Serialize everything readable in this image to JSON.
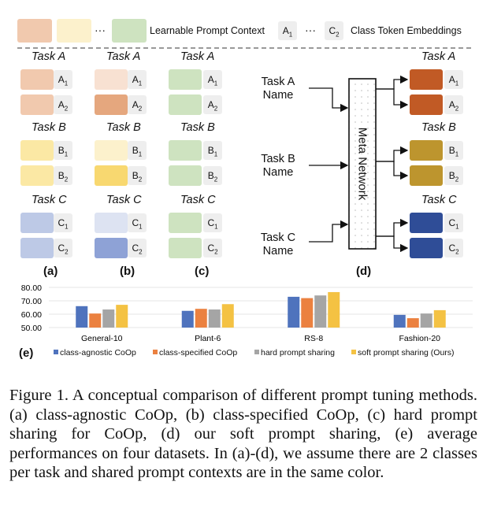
{
  "legend_top": {
    "ellipsis": "···",
    "context_label": "Learnable Prompt Context",
    "token_first": "A",
    "token_first_sub": "1",
    "token_ellipsis": "···",
    "token_last": "C",
    "token_last_sub": "2",
    "class_label": "Class Token Embeddings"
  },
  "task_labels": {
    "a": "Task A",
    "b": "Task B",
    "c": "Task C"
  },
  "tokens": {
    "a1": "A",
    "a1s": "1",
    "a2": "A",
    "a2s": "2",
    "b1": "B",
    "b1s": "1",
    "b2": "B",
    "b2s": "2",
    "c1": "C",
    "c1s": "1",
    "c2": "C",
    "c2s": "2"
  },
  "panel_labels": {
    "a": "(a)",
    "b": "(b)",
    "c": "(c)",
    "d": "(d)",
    "e": "(e)"
  },
  "meta_network": {
    "label": "Meta Network",
    "inputs": [
      {
        "line1": "Task A",
        "line2": "Name"
      },
      {
        "line1": "Task B",
        "line2": "Name"
      },
      {
        "line1": "Task C",
        "line2": "Name"
      }
    ]
  },
  "colors": {
    "task_a_light": "#f1c9ae",
    "task_a_pale": "#f8e1d2",
    "task_a_mid": "#e5a77e",
    "task_a_dark": "#c15a25",
    "task_b_light": "#fbe8a4",
    "task_b_pale": "#fcf1cc",
    "task_b_mid": "#f8d870",
    "task_b_dark": "#bd952e",
    "task_c_light": "#bdc9e6",
    "task_c_pale": "#dde3f2",
    "task_c_mid": "#8ea2d6",
    "task_c_dark": "#2f4d97",
    "shared_green": "#cee3c0",
    "token_grey": "#eeeeee",
    "series_blue": "#4f73bd",
    "series_orange": "#eb8140",
    "series_grey": "#a5a5a5",
    "series_yellow": "#f4c243"
  },
  "chart_data": {
    "type": "bar",
    "categories": [
      "General-10",
      "Plant-6",
      "RS-8",
      "Fashion-20"
    ],
    "series": [
      {
        "name": "class-agnostic CoOp",
        "values": [
          66.0,
          62.5,
          73.0,
          59.5
        ]
      },
      {
        "name": "class-specified CoOp",
        "values": [
          60.5,
          64.0,
          72.0,
          57.0
        ]
      },
      {
        "name": "hard prompt sharing",
        "values": [
          63.5,
          63.5,
          74.0,
          60.5
        ]
      },
      {
        "name": "soft prompt sharing (Ours)",
        "values": [
          67.0,
          67.5,
          76.5,
          63.0
        ]
      }
    ],
    "yticks": [
      "80.00",
      "70.00",
      "60.00",
      "50.00"
    ],
    "ylim": [
      50,
      80
    ],
    "grid": true,
    "legend_position": "bottom"
  },
  "caption": "Figure 1.  A conceptual comparison of different prompt tuning methods. (a) class-agnostic CoOp, (b) class-specified CoOp, (c) hard prompt sharing for CoOp, (d) our soft prompt sharing, (e) average performances on four datasets. In (a)-(d), we assume there are 2 classes per task and shared prompt contexts are in the same color."
}
